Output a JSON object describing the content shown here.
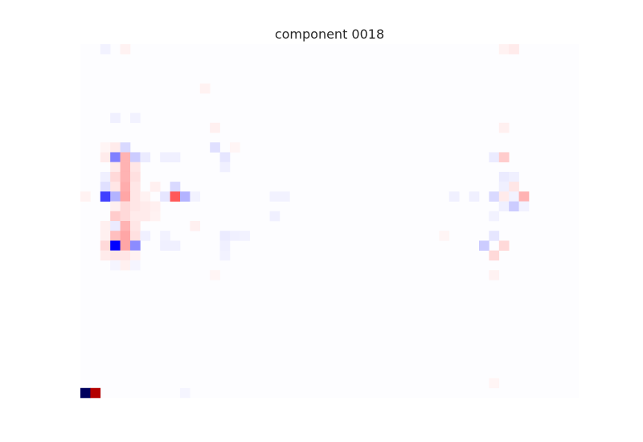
{
  "chart_data": {
    "type": "heatmap",
    "title": "component 0018",
    "xlabel": "",
    "ylabel": "",
    "grid": false,
    "legend": "none",
    "colormap": "seismic",
    "value_range": [
      -1,
      1
    ],
    "rows": 36,
    "cols": 50,
    "cells": [
      {
        "row": 0,
        "col": 2,
        "value": -0.05
      },
      {
        "row": 0,
        "col": 4,
        "value": 0.05
      },
      {
        "row": 0,
        "col": 42,
        "value": 0.05
      },
      {
        "row": 0,
        "col": 43,
        "value": 0.08
      },
      {
        "row": 4,
        "col": 12,
        "value": 0.05
      },
      {
        "row": 7,
        "col": 3,
        "value": -0.06
      },
      {
        "row": 7,
        "col": 5,
        "value": -0.05
      },
      {
        "row": 8,
        "col": 13,
        "value": 0.06
      },
      {
        "row": 8,
        "col": 42,
        "value": 0.06
      },
      {
        "row": 10,
        "col": 2,
        "value": 0.04
      },
      {
        "row": 10,
        "col": 3,
        "value": 0.08
      },
      {
        "row": 10,
        "col": 4,
        "value": -0.15
      },
      {
        "row": 10,
        "col": 13,
        "value": -0.12
      },
      {
        "row": 10,
        "col": 15,
        "value": 0.04
      },
      {
        "row": 11,
        "col": 2,
        "value": 0.08
      },
      {
        "row": 11,
        "col": 3,
        "value": -0.5
      },
      {
        "row": 11,
        "col": 4,
        "value": 0.3
      },
      {
        "row": 11,
        "col": 5,
        "value": -0.2
      },
      {
        "row": 11,
        "col": 6,
        "value": -0.08
      },
      {
        "row": 11,
        "col": 8,
        "value": -0.06
      },
      {
        "row": 11,
        "col": 9,
        "value": -0.06
      },
      {
        "row": 11,
        "col": 14,
        "value": -0.1
      },
      {
        "row": 11,
        "col": 41,
        "value": -0.08
      },
      {
        "row": 11,
        "col": 42,
        "value": 0.2
      },
      {
        "row": 12,
        "col": 3,
        "value": 0.08
      },
      {
        "row": 12,
        "col": 4,
        "value": 0.3
      },
      {
        "row": 12,
        "col": 5,
        "value": 0.1
      },
      {
        "row": 12,
        "col": 14,
        "value": -0.06
      },
      {
        "row": 13,
        "col": 2,
        "value": -0.06
      },
      {
        "row": 13,
        "col": 3,
        "value": 0.15
      },
      {
        "row": 13,
        "col": 4,
        "value": 0.3
      },
      {
        "row": 13,
        "col": 5,
        "value": 0.12
      },
      {
        "row": 13,
        "col": 42,
        "value": -0.08
      },
      {
        "row": 13,
        "col": 43,
        "value": -0.06
      },
      {
        "row": 14,
        "col": 2,
        "value": -0.12
      },
      {
        "row": 14,
        "col": 3,
        "value": 0.1
      },
      {
        "row": 14,
        "col": 4,
        "value": 0.32
      },
      {
        "row": 14,
        "col": 5,
        "value": 0.1
      },
      {
        "row": 14,
        "col": 7,
        "value": 0.06
      },
      {
        "row": 14,
        "col": 9,
        "value": -0.15
      },
      {
        "row": 14,
        "col": 42,
        "value": -0.06
      },
      {
        "row": 14,
        "col": 43,
        "value": 0.1
      },
      {
        "row": 15,
        "col": 0,
        "value": 0.05
      },
      {
        "row": 15,
        "col": 2,
        "value": -0.75
      },
      {
        "row": 15,
        "col": 3,
        "value": -0.3
      },
      {
        "row": 15,
        "col": 4,
        "value": 0.35
      },
      {
        "row": 15,
        "col": 5,
        "value": 0.1
      },
      {
        "row": 15,
        "col": 6,
        "value": 0.05
      },
      {
        "row": 15,
        "col": 8,
        "value": -0.1
      },
      {
        "row": 15,
        "col": 9,
        "value": 0.65
      },
      {
        "row": 15,
        "col": 10,
        "value": -0.3
      },
      {
        "row": 15,
        "col": 11,
        "value": -0.05
      },
      {
        "row": 15,
        "col": 19,
        "value": -0.05
      },
      {
        "row": 15,
        "col": 20,
        "value": -0.05
      },
      {
        "row": 15,
        "col": 37,
        "value": -0.06
      },
      {
        "row": 15,
        "col": 39,
        "value": -0.06
      },
      {
        "row": 15,
        "col": 41,
        "value": -0.15
      },
      {
        "row": 15,
        "col": 42,
        "value": 0.08
      },
      {
        "row": 15,
        "col": 43,
        "value": -0.05
      },
      {
        "row": 15,
        "col": 44,
        "value": 0.3
      },
      {
        "row": 16,
        "col": 3,
        "value": 0.06
      },
      {
        "row": 16,
        "col": 4,
        "value": 0.15
      },
      {
        "row": 16,
        "col": 5,
        "value": 0.1
      },
      {
        "row": 16,
        "col": 6,
        "value": 0.08
      },
      {
        "row": 16,
        "col": 7,
        "value": 0.06
      },
      {
        "row": 16,
        "col": 42,
        "value": -0.06
      },
      {
        "row": 16,
        "col": 43,
        "value": -0.2
      },
      {
        "row": 16,
        "col": 44,
        "value": -0.05
      },
      {
        "row": 17,
        "col": 3,
        "value": 0.2
      },
      {
        "row": 17,
        "col": 4,
        "value": 0.15
      },
      {
        "row": 17,
        "col": 5,
        "value": 0.08
      },
      {
        "row": 17,
        "col": 6,
        "value": 0.08
      },
      {
        "row": 17,
        "col": 7,
        "value": 0.05
      },
      {
        "row": 17,
        "col": 19,
        "value": -0.06
      },
      {
        "row": 17,
        "col": 41,
        "value": -0.05
      },
      {
        "row": 18,
        "col": 2,
        "value": 0.06
      },
      {
        "row": 18,
        "col": 3,
        "value": -0.08
      },
      {
        "row": 18,
        "col": 4,
        "value": 0.3
      },
      {
        "row": 18,
        "col": 5,
        "value": 0.1
      },
      {
        "row": 18,
        "col": 11,
        "value": 0.06
      },
      {
        "row": 19,
        "col": 2,
        "value": 0.06
      },
      {
        "row": 19,
        "col": 3,
        "value": 0.25
      },
      {
        "row": 19,
        "col": 4,
        "value": 0.35
      },
      {
        "row": 19,
        "col": 5,
        "value": 0.12
      },
      {
        "row": 19,
        "col": 6,
        "value": -0.06
      },
      {
        "row": 19,
        "col": 8,
        "value": -0.05
      },
      {
        "row": 19,
        "col": 14,
        "value": -0.08
      },
      {
        "row": 19,
        "col": 15,
        "value": -0.06
      },
      {
        "row": 19,
        "col": 16,
        "value": -0.05
      },
      {
        "row": 19,
        "col": 36,
        "value": 0.04
      },
      {
        "row": 19,
        "col": 41,
        "value": -0.1
      },
      {
        "row": 20,
        "col": 2,
        "value": 0.15
      },
      {
        "row": 20,
        "col": 3,
        "value": -1.0
      },
      {
        "row": 20,
        "col": 4,
        "value": 0.35
      },
      {
        "row": 20,
        "col": 5,
        "value": -0.45
      },
      {
        "row": 20,
        "col": 8,
        "value": -0.06
      },
      {
        "row": 20,
        "col": 9,
        "value": -0.06
      },
      {
        "row": 20,
        "col": 14,
        "value": -0.06
      },
      {
        "row": 20,
        "col": 40,
        "value": -0.2
      },
      {
        "row": 20,
        "col": 42,
        "value": 0.15
      },
      {
        "row": 21,
        "col": 2,
        "value": 0.08
      },
      {
        "row": 21,
        "col": 3,
        "value": 0.1
      },
      {
        "row": 21,
        "col": 4,
        "value": 0.1
      },
      {
        "row": 21,
        "col": 5,
        "value": 0.05
      },
      {
        "row": 21,
        "col": 14,
        "value": -0.05
      },
      {
        "row": 21,
        "col": 41,
        "value": 0.15
      },
      {
        "row": 22,
        "col": 3,
        "value": -0.04
      },
      {
        "row": 22,
        "col": 4,
        "value": 0.06
      },
      {
        "row": 22,
        "col": 5,
        "value": -0.04
      },
      {
        "row": 23,
        "col": 13,
        "value": 0.04
      },
      {
        "row": 23,
        "col": 41,
        "value": 0.05
      },
      {
        "row": 34,
        "col": 41,
        "value": 0.04
      },
      {
        "row": 35,
        "col": 0,
        "value": -1.9
      },
      {
        "row": 35,
        "col": 1,
        "value": 1.6
      },
      {
        "row": 35,
        "col": 10,
        "value": -0.04
      }
    ]
  }
}
